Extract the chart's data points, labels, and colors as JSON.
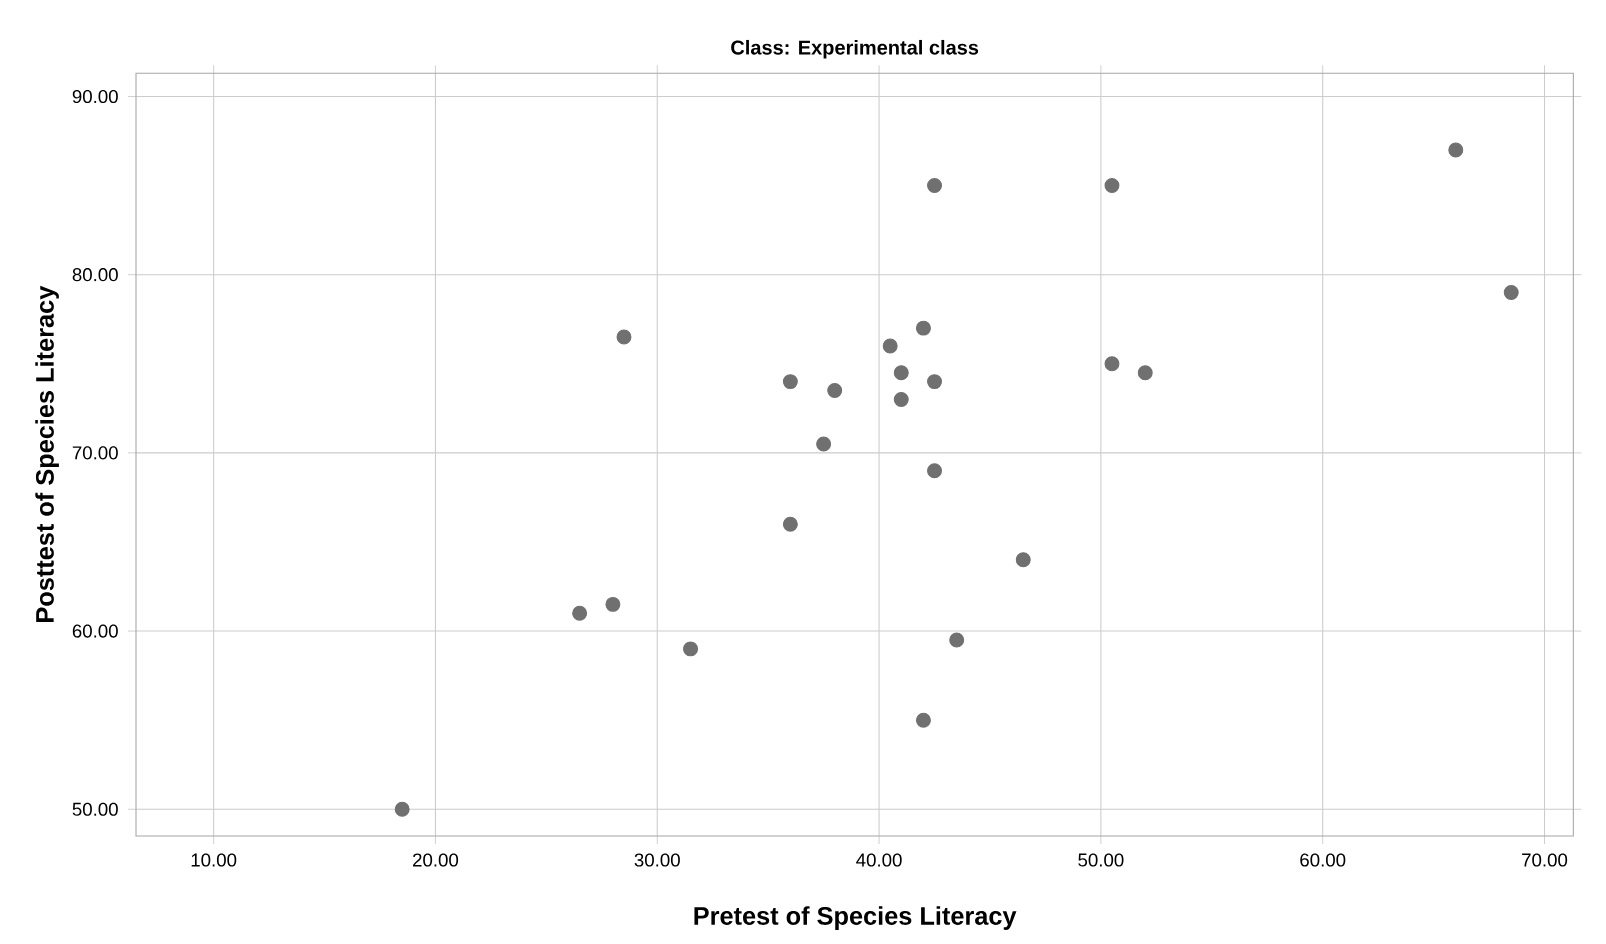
{
  "chart_data": {
    "type": "scatter",
    "title": "Class: Experimental class",
    "xlabel": "Pretest of Species Literacy",
    "ylabel": "Posttest of Species Literacy",
    "x": [
      18.5,
      26.5,
      28,
      28.5,
      31.5,
      36,
      36,
      37.5,
      38,
      40.5,
      41,
      41,
      42,
      42,
      42.5,
      42.5,
      42.5,
      43.5,
      46.5,
      50.5,
      50.5,
      52,
      66,
      68.5
    ],
    "series": [
      {
        "color": "#707070",
        "values": [
          50,
          61,
          61.5,
          76.5,
          59,
          74,
          66,
          70.5,
          73.5,
          76,
          74.5,
          73,
          77,
          55,
          85,
          74,
          69,
          59.5,
          64,
          85,
          75,
          74.5,
          87,
          79
        ]
      }
    ],
    "xlim": [
      6.5,
      71.3
    ],
    "ylim": [
      48.5,
      91.3
    ],
    "xticks": [
      {
        "value": 10,
        "label": "10.00"
      },
      {
        "value": 20,
        "label": "20.00"
      },
      {
        "value": 30,
        "label": "30.00"
      },
      {
        "value": 40,
        "label": "40.00"
      },
      {
        "value": 50,
        "label": "50.00"
      },
      {
        "value": 60,
        "label": "60.00"
      },
      {
        "value": 70,
        "label": "70.00"
      }
    ],
    "yticks": [
      {
        "value": 50,
        "label": "50.00"
      },
      {
        "value": 60,
        "label": "60.00"
      },
      {
        "value": 70,
        "label": "70.00"
      },
      {
        "value": 80,
        "label": "80.00"
      },
      {
        "value": 90,
        "label": "90.00"
      }
    ],
    "grid": true,
    "marker": "circle"
  }
}
